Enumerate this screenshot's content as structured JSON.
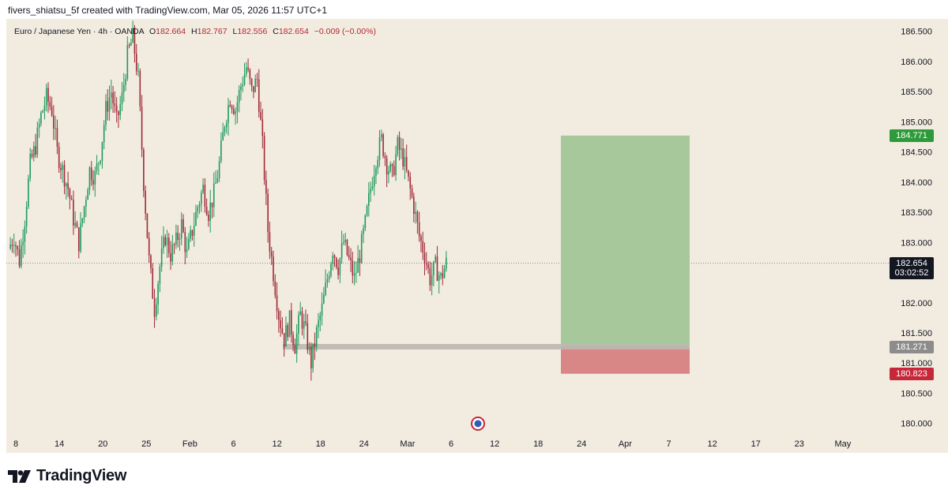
{
  "header": {
    "credit": "fivers_shiatsu_5f created with TradingView.com, Mar 05, 2026 11:57 UTC+1"
  },
  "legend": {
    "symbol": "Euro / Japanese Yen · 4h · OANDA",
    "open_key": "O",
    "open": "182.664",
    "high_key": "H",
    "high": "182.767",
    "low_key": "L",
    "low": "182.556",
    "close_key": "C",
    "close": "182.654",
    "change": "−0.009 (−0.00%)"
  },
  "price_tags": {
    "current": "182.654",
    "countdown": "03:02:52",
    "target": "184.771",
    "entry": "181.271",
    "stop": "180.823"
  },
  "footer": {
    "brand": "TradingView"
  },
  "colors": {
    "background": "#f2ebdf",
    "bull": "#1f9a5e",
    "bear": "#a02a3a",
    "profit_zone": "#a6c89b",
    "loss_zone": "#d98786",
    "entry_band": "#bdb8b1",
    "target_tag": "#2f9a3a",
    "entry_tag": "#8c8c8c",
    "stop_tag": "#c6283a",
    "current_tag": "#131722"
  },
  "chart_data": {
    "type": "candlestick",
    "title": "Euro / Japanese Yen · 4h · OANDA",
    "xlabel": "",
    "ylabel": "",
    "ylim": [
      179.8,
      186.6
    ],
    "y_ticks": [
      "180.000",
      "180.500",
      "181.000",
      "181.500",
      "182.000",
      "182.500",
      "183.000",
      "183.500",
      "184.000",
      "184.500",
      "185.000",
      "185.500",
      "186.000",
      "186.500"
    ],
    "x_ticks": [
      "8",
      "14",
      "20",
      "25",
      "Feb",
      "6",
      "12",
      "18",
      "24",
      "Mar",
      "6",
      "12",
      "18",
      "24",
      "Apr",
      "7",
      "12",
      "17",
      "23",
      "May"
    ],
    "close_path": [
      182.9,
      183.1,
      182.7,
      183.4,
      184.3,
      184.6,
      185.1,
      185.4,
      185.2,
      184.5,
      184.2,
      183.9,
      183.4,
      183.0,
      183.6,
      184.2,
      184.1,
      184.5,
      185.2,
      185.5,
      185.0,
      185.4,
      186.1,
      186.4,
      185.7,
      184.0,
      182.7,
      181.9,
      182.6,
      183.1,
      182.8,
      183.0,
      183.3,
      182.8,
      183.2,
      183.6,
      183.9,
      183.5,
      183.8,
      184.3,
      185.0,
      185.4,
      185.2,
      185.6,
      185.9,
      185.5,
      185.7,
      184.6,
      183.2,
      182.5,
      181.8,
      181.4,
      181.7,
      181.3,
      181.8,
      181.5,
      181.0,
      181.5,
      181.9,
      182.4,
      182.9,
      182.6,
      183.0,
      182.7,
      182.4,
      182.8,
      183.3,
      183.9,
      184.4,
      184.7,
      184.3,
      184.1,
      184.6,
      184.4,
      184.0,
      183.6,
      183.1,
      182.8,
      182.4,
      182.6,
      182.4,
      182.654
    ],
    "position": {
      "entry": 181.271,
      "target": 184.771,
      "stop": 180.823,
      "current_price": 182.654
    }
  }
}
